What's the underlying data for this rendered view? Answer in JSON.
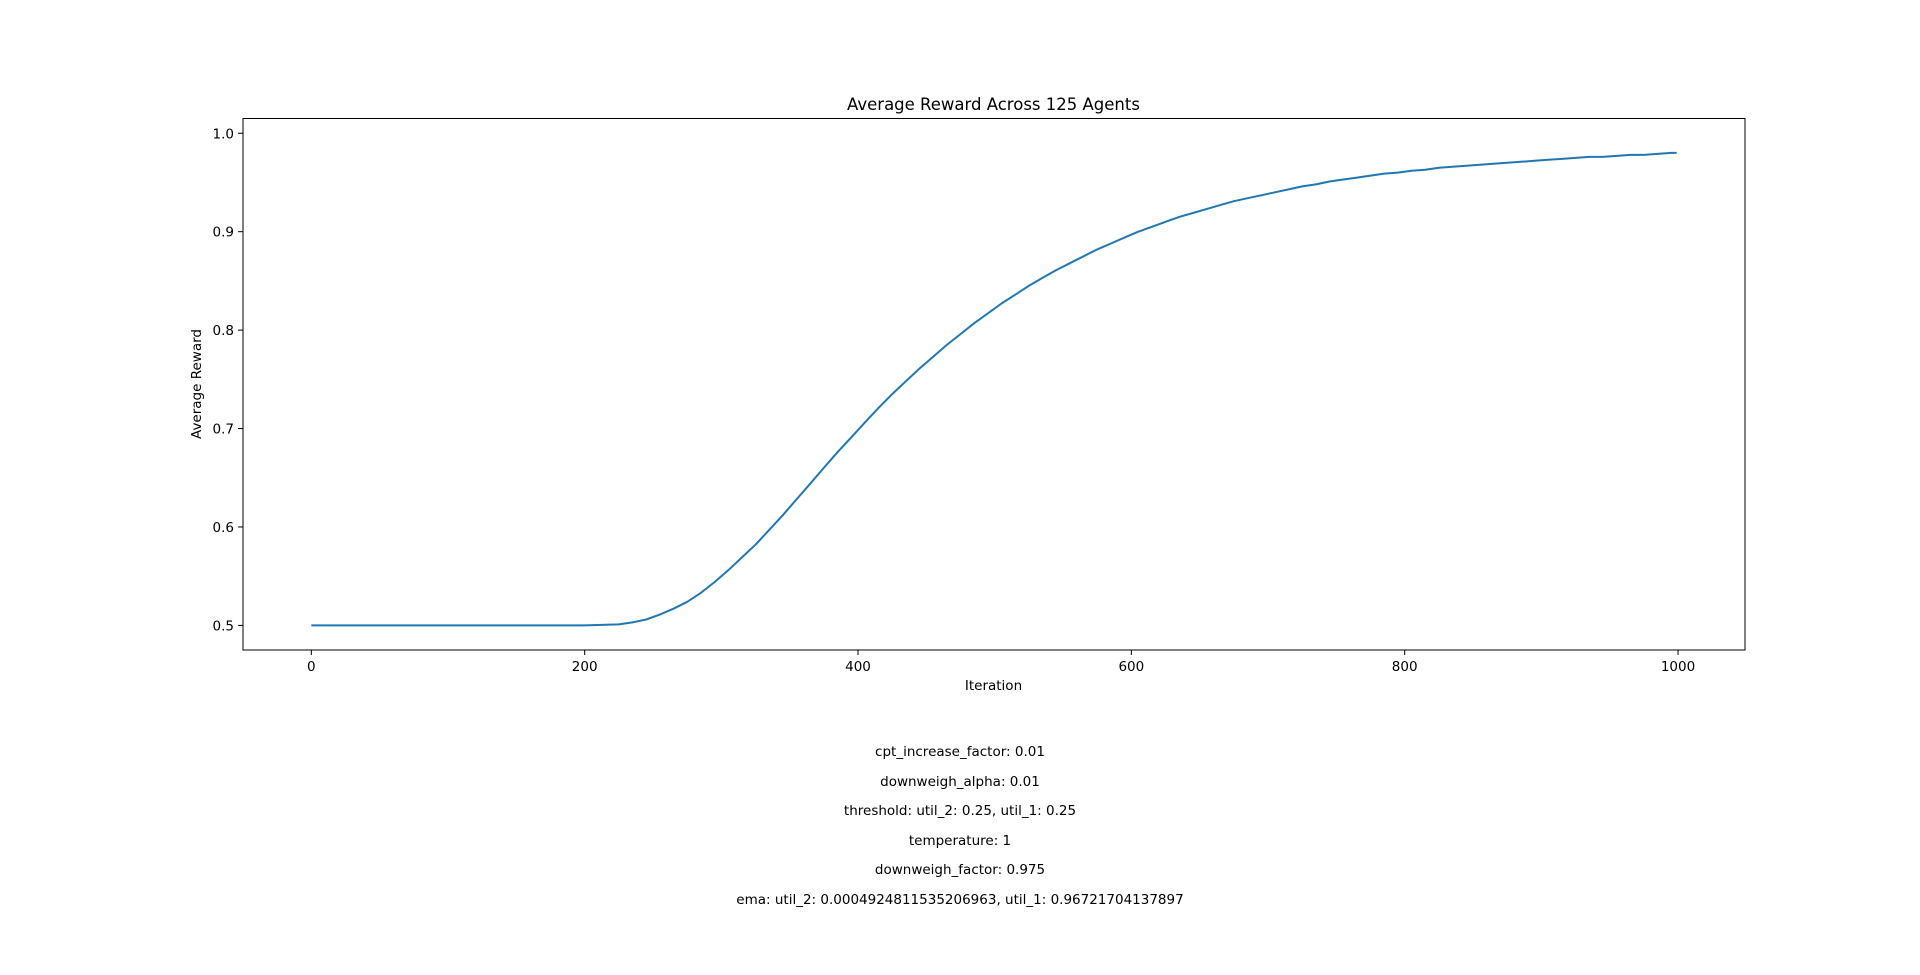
{
  "chart_data": {
    "type": "line",
    "title": "Average Reward Across 125 Agents",
    "xlabel": "Iteration",
    "ylabel": "Average Reward",
    "xlim": [
      -50,
      1049
    ],
    "ylim": [
      0.475,
      1.015
    ],
    "xticks": [
      0,
      200,
      400,
      600,
      800,
      1000
    ],
    "yticks": [
      0.5,
      0.6,
      0.7,
      0.8,
      0.9,
      1.0
    ],
    "xtick_labels": [
      "0",
      "200",
      "400",
      "600",
      "800",
      "1000"
    ],
    "ytick_labels": [
      "0.5",
      "0.6",
      "0.7",
      "0.8",
      "0.9",
      "1.0"
    ],
    "grid": false,
    "legend": "none",
    "line_color": "#1f77b4",
    "series": [
      {
        "x": [
          0,
          100,
          200,
          225,
          235,
          245,
          255,
          265,
          275,
          285,
          295,
          305,
          315,
          325,
          335,
          345,
          355,
          365,
          375,
          385,
          395,
          405,
          415,
          425,
          435,
          445,
          455,
          465,
          475,
          485,
          495,
          505,
          515,
          525,
          535,
          545,
          555,
          565,
          575,
          585,
          595,
          605,
          615,
          625,
          635,
          645,
          655,
          665,
          675,
          685,
          695,
          705,
          715,
          725,
          735,
          745,
          755,
          765,
          775,
          785,
          795,
          805,
          815,
          825,
          835,
          845,
          855,
          865,
          875,
          885,
          895,
          905,
          915,
          925,
          935,
          945,
          955,
          965,
          975,
          985,
          995,
          999
        ],
        "values": [
          0.5,
          0.5,
          0.5,
          0.501,
          0.503,
          0.506,
          0.511,
          0.517,
          0.524,
          0.533,
          0.544,
          0.556,
          0.569,
          0.582,
          0.597,
          0.612,
          0.628,
          0.644,
          0.66,
          0.676,
          0.691,
          0.706,
          0.721,
          0.735,
          0.748,
          0.761,
          0.773,
          0.785,
          0.796,
          0.807,
          0.817,
          0.827,
          0.836,
          0.845,
          0.853,
          0.861,
          0.868,
          0.875,
          0.882,
          0.888,
          0.894,
          0.9,
          0.905,
          0.91,
          0.915,
          0.919,
          0.923,
          0.927,
          0.931,
          0.934,
          0.937,
          0.94,
          0.943,
          0.946,
          0.948,
          0.951,
          0.953,
          0.955,
          0.957,
          0.959,
          0.96,
          0.962,
          0.963,
          0.965,
          0.966,
          0.967,
          0.968,
          0.969,
          0.97,
          0.971,
          0.972,
          0.973,
          0.974,
          0.975,
          0.976,
          0.976,
          0.977,
          0.978,
          0.978,
          0.979,
          0.98,
          0.98
        ]
      }
    ]
  },
  "params": [
    "cpt_increase_factor: 0.01",
    "downweigh_alpha: 0.01",
    "threshold: util_2: 0.25, util_1: 0.25",
    "temperature: 1",
    "downweigh_factor: 0.975",
    "ema: util_2: 0.0004924811535206963, util_1: 0.96721704137897"
  ]
}
